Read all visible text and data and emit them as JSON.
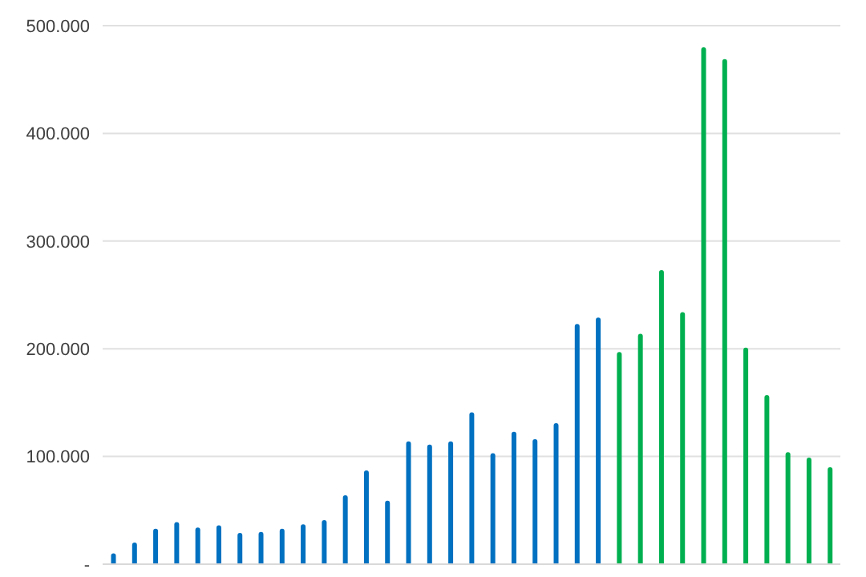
{
  "chart_data": {
    "type": "bar",
    "categories": [
      null,
      null,
      null,
      null,
      null,
      null,
      null,
      null,
      null,
      null,
      null,
      null,
      null,
      null,
      null,
      null,
      null,
      null,
      null,
      null,
      null,
      null,
      null,
      null,
      null,
      null,
      null,
      null,
      null,
      null,
      null,
      null,
      null,
      null,
      null
    ],
    "values": [
      10000,
      20000,
      33000,
      39000,
      34000,
      36000,
      29000,
      30000,
      33000,
      37000,
      41000,
      64000,
      87000,
      59000,
      114000,
      111000,
      114000,
      141000,
      103000,
      123000,
      116000,
      131000,
      223000,
      229000,
      197000,
      214000,
      273000,
      234000,
      480000,
      469000,
      201000,
      157000,
      104000,
      99000,
      90000
    ],
    "colors": [
      "#0070c0",
      "#0070c0",
      "#0070c0",
      "#0070c0",
      "#0070c0",
      "#0070c0",
      "#0070c0",
      "#0070c0",
      "#0070c0",
      "#0070c0",
      "#0070c0",
      "#0070c0",
      "#0070c0",
      "#0070c0",
      "#0070c0",
      "#0070c0",
      "#0070c0",
      "#0070c0",
      "#0070c0",
      "#0070c0",
      "#0070c0",
      "#0070c0",
      "#0070c0",
      "#0070c0",
      "#00b050",
      "#00b050",
      "#00b050",
      "#00b050",
      "#00b050",
      "#00b050",
      "#00b050",
      "#00b050",
      "#00b050",
      "#00b050",
      "#00b050"
    ],
    "ylim": [
      0,
      500000
    ],
    "yticks": [
      {
        "value": 0,
        "label": "-"
      },
      {
        "value": 100000,
        "label": "100.000"
      },
      {
        "value": 200000,
        "label": "200.000"
      },
      {
        "value": 300000,
        "label": "300.000"
      },
      {
        "value": 400000,
        "label": "400.000"
      },
      {
        "value": 500000,
        "label": "500.000"
      }
    ],
    "grid": "y",
    "tick_labels": "y"
  }
}
